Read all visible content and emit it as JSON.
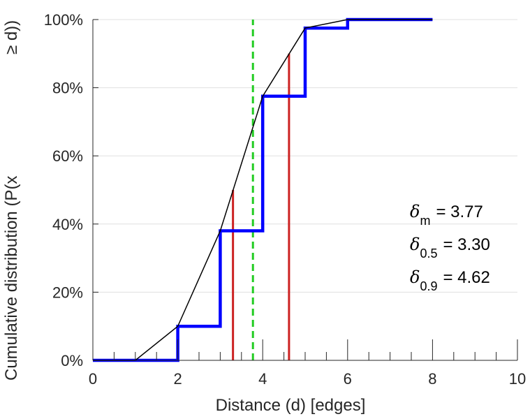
{
  "chart_data": {
    "type": "line",
    "xlabel": "Distance (d) [edges]",
    "ylabel_main": "Cumulative distribution (P(x",
    "ylabel_tail": "≥ d))",
    "xlim": [
      0,
      10
    ],
    "ylim": [
      0,
      1
    ],
    "x_ticks": [
      0,
      2,
      4,
      6,
      8,
      10
    ],
    "x_minor_step": 0.5,
    "y_ticks": [
      0,
      0.2,
      0.4,
      0.6,
      0.8,
      1.0
    ],
    "y_tick_labels": [
      "0%",
      "20%",
      "40%",
      "60%",
      "80%",
      "100%"
    ],
    "grid": "horizontal",
    "series": [
      {
        "kind": "step",
        "color": "#0000ff",
        "x": [
          0,
          2,
          3,
          4,
          5,
          6,
          8
        ],
        "y": [
          0,
          0.1,
          0.38,
          0.775,
          0.975,
          1.0,
          1.0
        ]
      },
      {
        "kind": "line",
        "color": "#000000",
        "x": [
          0,
          1,
          2,
          3,
          4,
          5,
          6,
          8
        ],
        "y": [
          0,
          0,
          0.1,
          0.38,
          0.775,
          0.975,
          1.0,
          1.0
        ]
      }
    ],
    "vlines": [
      {
        "x": 3.77,
        "y": 1.0,
        "color": "#22cc22",
        "style": "dashed"
      },
      {
        "x": 3.3,
        "y": 0.5,
        "color": "#cc2222",
        "style": "solid"
      },
      {
        "x": 4.62,
        "y": 0.9,
        "color": "#cc2222",
        "style": "solid"
      }
    ],
    "annotations": [
      {
        "symbol": "δ",
        "sub": "m",
        "text": "= 3.77"
      },
      {
        "symbol": "δ",
        "sub": "0.5",
        "text": "= 3.30"
      },
      {
        "symbol": "δ",
        "sub": "0.9",
        "text": "= 4.62"
      }
    ]
  }
}
